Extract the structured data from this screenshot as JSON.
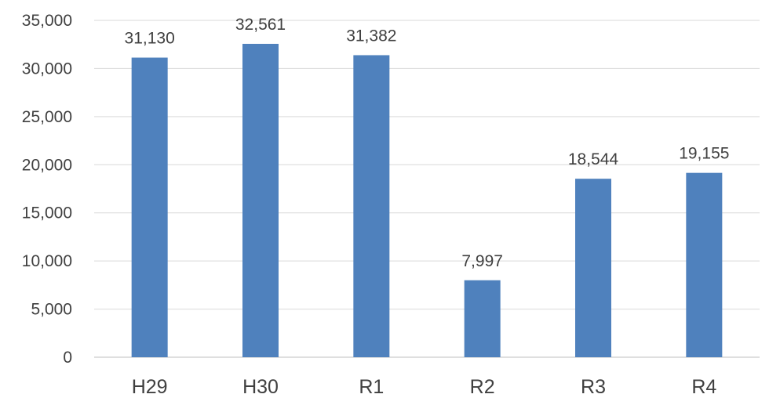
{
  "chart_data": {
    "type": "bar",
    "title": "",
    "xlabel": "",
    "ylabel": "",
    "categories": [
      "H29",
      "H30",
      "R1",
      "R2",
      "R3",
      "R4"
    ],
    "values": [
      31130,
      32561,
      31382,
      7997,
      18544,
      19155
    ],
    "data_labels": [
      "31,130",
      "32,561",
      "31,382",
      "7,997",
      "18,544",
      "19,155"
    ],
    "ylim": [
      0,
      35000
    ],
    "yticks": [
      0,
      5000,
      10000,
      15000,
      20000,
      25000,
      30000,
      35000
    ],
    "ytick_labels": [
      "0",
      "5,000",
      "10,000",
      "15,000",
      "20,000",
      "25,000",
      "30,000",
      "35,000"
    ],
    "grid": true,
    "legend": "none",
    "colors": {
      "bar": "#4f81bd",
      "grid": "#d9d9d9",
      "text": "#404040"
    }
  }
}
